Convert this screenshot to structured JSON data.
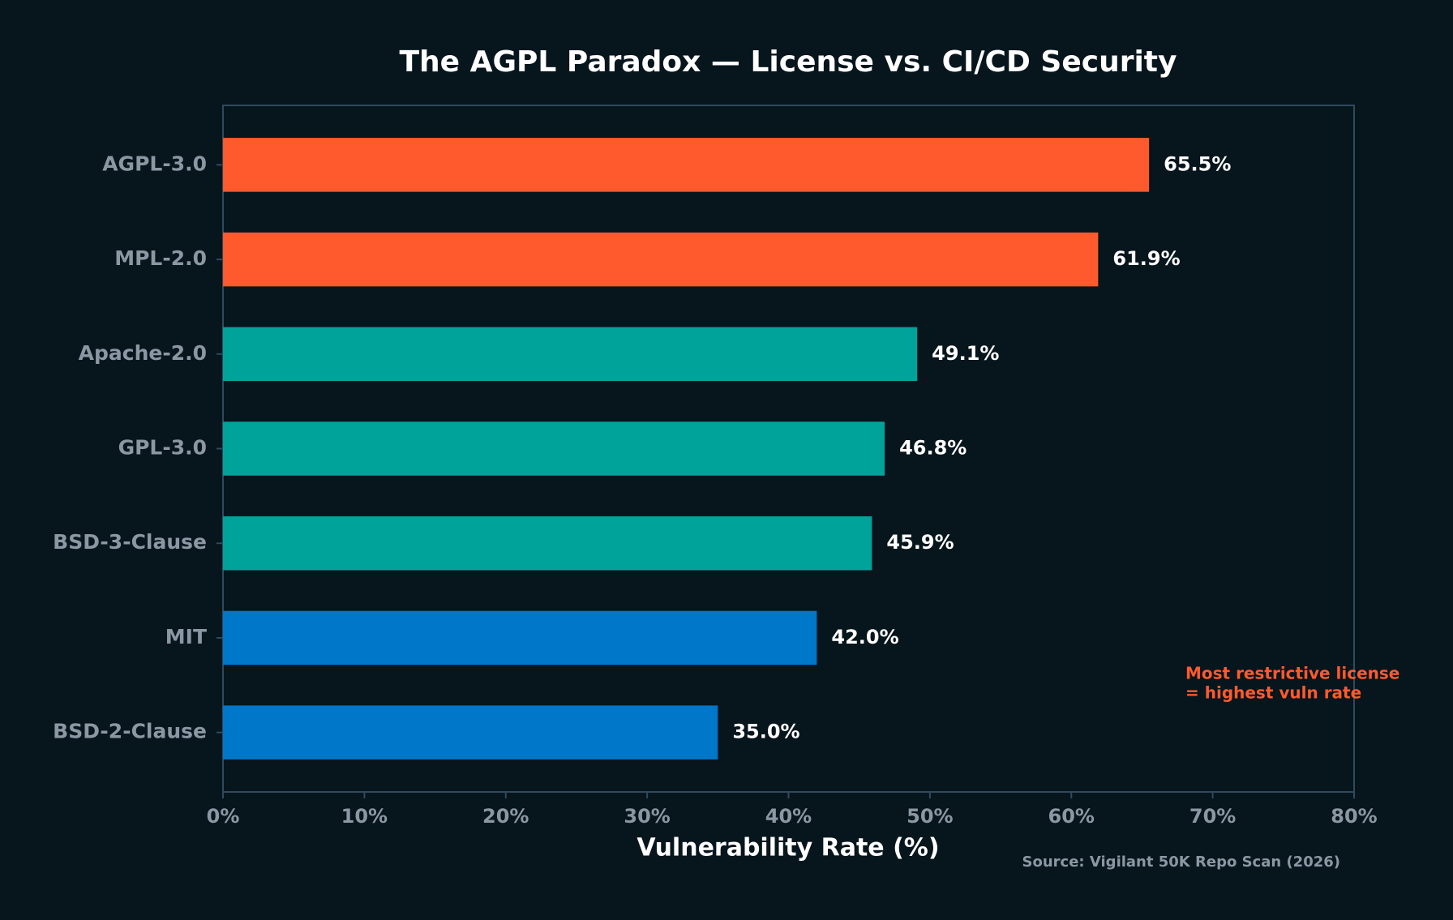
{
  "chart_data": {
    "type": "barh",
    "title": "The AGPL Paradox — License vs. CI/CD Security",
    "categories": [
      "AGPL-3.0",
      "MPL-2.0",
      "Apache-2.0",
      "GPL-3.0",
      "BSD-3-Clause",
      "MIT",
      "BSD-2-Clause"
    ],
    "values": [
      65.5,
      61.9,
      49.1,
      46.8,
      45.9,
      42.0,
      35.0
    ],
    "value_labels": [
      "65.5%",
      "61.9%",
      "49.1%",
      "46.8%",
      "45.9%",
      "42.0%",
      "35.0%"
    ],
    "colors": [
      "#ff5a2d",
      "#ff5a2d",
      "#00a39a",
      "#00a39a",
      "#00a39a",
      "#0077c8",
      "#0077c8"
    ],
    "xlim": [
      0,
      80
    ],
    "xticks": [
      {
        "value": 0,
        "label": "0%"
      },
      {
        "value": 10,
        "label": "10%"
      },
      {
        "value": 20,
        "label": "20%"
      },
      {
        "value": 30,
        "label": "30%"
      },
      {
        "value": 40,
        "label": "40%"
      },
      {
        "value": 50,
        "label": "50%"
      },
      {
        "value": 60,
        "label": "60%"
      },
      {
        "value": 70,
        "label": "70%"
      },
      {
        "value": 80,
        "label": "80%"
      }
    ],
    "xlabel": "Vulnerability Rate (%)",
    "annotation": [
      "Most restrictive license",
      "= highest vuln rate"
    ],
    "annotation_color": "#ff5a2d",
    "source": "Source: Vigilant 50K Repo Scan (2026)"
  }
}
